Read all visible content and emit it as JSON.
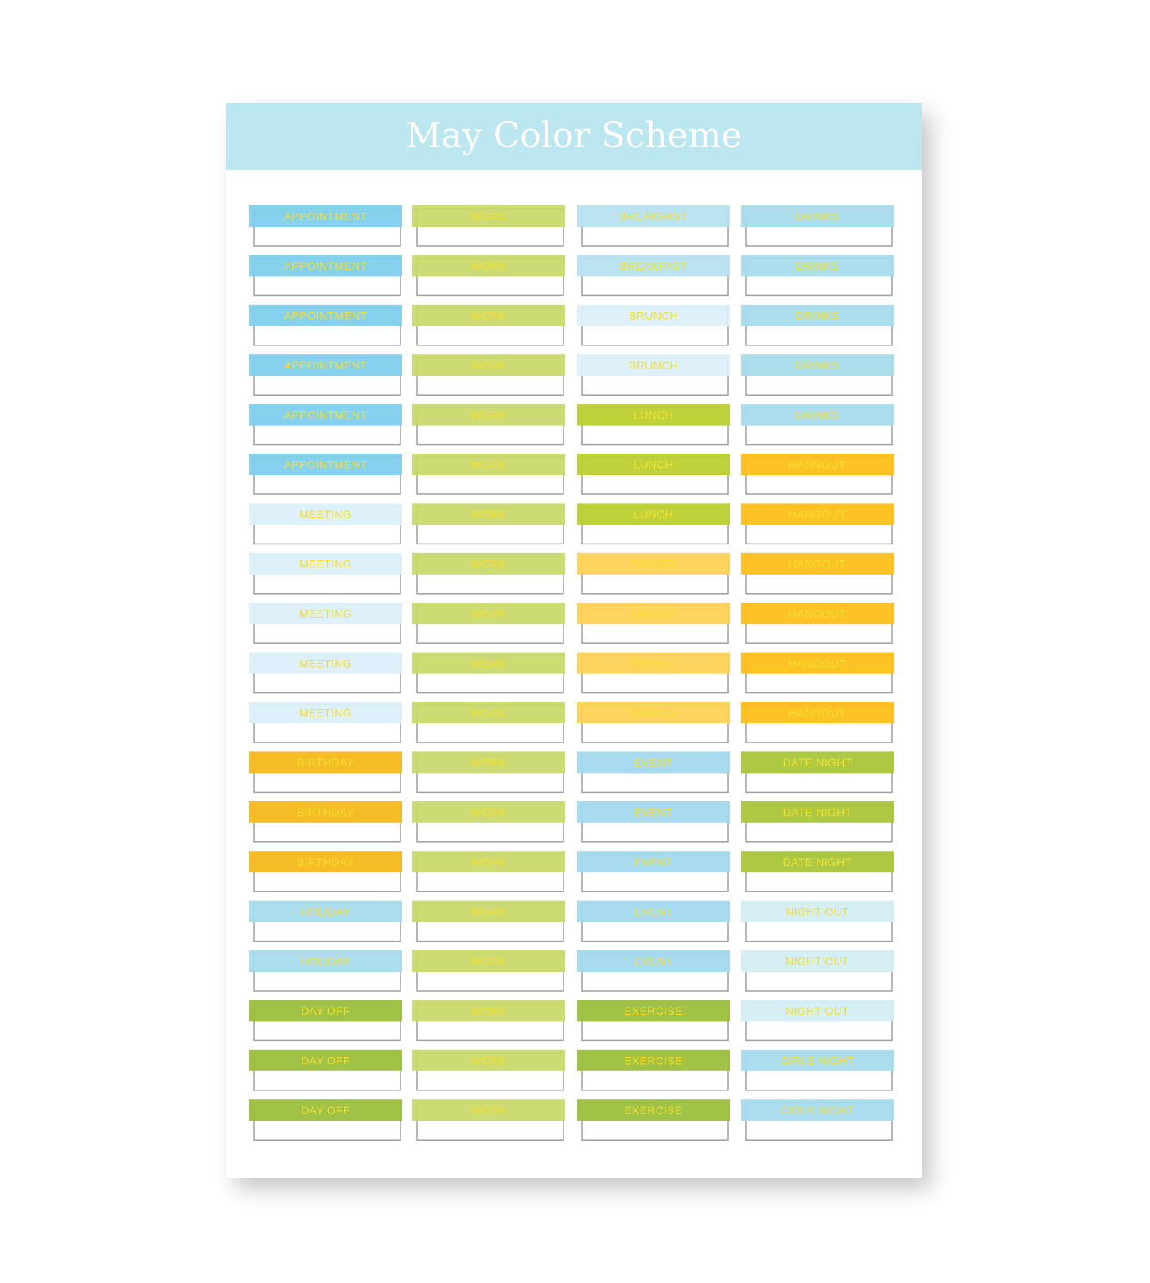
{
  "header": {
    "title": "May Color Scheme"
  },
  "columns": [
    {
      "stickers": [
        {
          "label": "APPOINTMENT",
          "color": "#7fcfec"
        },
        {
          "label": "APPOINTMENT",
          "color": "#7fcfec"
        },
        {
          "label": "APPOINTMENT",
          "color": "#7fcfec"
        },
        {
          "label": "APPOINTMENT",
          "color": "#7fcfec"
        },
        {
          "label": "APPOINTMENT",
          "color": "#7fcfec"
        },
        {
          "label": "APPOINTMENT",
          "color": "#7fcfec"
        },
        {
          "label": "MEETING",
          "color": "#dcf0fa"
        },
        {
          "label": "MEETING",
          "color": "#dcf0fa"
        },
        {
          "label": "MEETING",
          "color": "#dcf0fa"
        },
        {
          "label": "MEETING",
          "color": "#dcf0fa"
        },
        {
          "label": "MEETING",
          "color": "#dcf0fa"
        },
        {
          "label": "BIRTHDAY",
          "color": "#f6b91c"
        },
        {
          "label": "BIRTHDAY",
          "color": "#f6b91c"
        },
        {
          "label": "BIRTHDAY",
          "color": "#f6b91c"
        },
        {
          "label": "HOLIDAY",
          "color": "#a8dcec"
        },
        {
          "label": "HOLIDAY",
          "color": "#a8dcec"
        },
        {
          "label": "DAY OFF",
          "color": "#9bbf3c"
        },
        {
          "label": "DAY OFF",
          "color": "#9bbf3c"
        },
        {
          "label": "DAY OFF",
          "color": "#9bbf3c"
        }
      ]
    },
    {
      "stickers": [
        {
          "label": "WORK",
          "color": "#c9d96b"
        },
        {
          "label": "WORK",
          "color": "#c9d96b"
        },
        {
          "label": "WORK",
          "color": "#c9d96b"
        },
        {
          "label": "WORK",
          "color": "#c9d96b"
        },
        {
          "label": "WORK",
          "color": "#c9d96b"
        },
        {
          "label": "WORK",
          "color": "#c9d96b"
        },
        {
          "label": "WORK",
          "color": "#c9d96b"
        },
        {
          "label": "WORK",
          "color": "#c9d96b"
        },
        {
          "label": "WORK",
          "color": "#c9d96b"
        },
        {
          "label": "WORK",
          "color": "#c9d96b"
        },
        {
          "label": "WORK",
          "color": "#c9d96b"
        },
        {
          "label": "WORK",
          "color": "#c9d96b"
        },
        {
          "label": "WORK",
          "color": "#c9d96b"
        },
        {
          "label": "WORK",
          "color": "#c9d96b"
        },
        {
          "label": "WORK",
          "color": "#c9d96b"
        },
        {
          "label": "WORK",
          "color": "#c9d96b"
        },
        {
          "label": "WORK",
          "color": "#c9d96b"
        },
        {
          "label": "WORK",
          "color": "#c9d96b"
        },
        {
          "label": "WORK",
          "color": "#c9d96b"
        }
      ]
    },
    {
      "stickers": [
        {
          "label": "BREAKFAST",
          "color": "#b8e2f0"
        },
        {
          "label": "BREAKFAST",
          "color": "#b8e2f0"
        },
        {
          "label": "BRUNCH",
          "color": "#dcf0fa"
        },
        {
          "label": "BRUNCH",
          "color": "#dcf0fa"
        },
        {
          "label": "LUNCH",
          "color": "#bccf30"
        },
        {
          "label": "LUNCH",
          "color": "#bccf30"
        },
        {
          "label": "LUNCH",
          "color": "#bccf30"
        },
        {
          "label": "DINNER",
          "color": "#fdd254"
        },
        {
          "label": "DINNER",
          "color": "#fdd254"
        },
        {
          "label": "DINNER",
          "color": "#fdd254"
        },
        {
          "label": "DINNER",
          "color": "#fdd254"
        },
        {
          "label": "EVENT",
          "color": "#a3d9ee"
        },
        {
          "label": "EVENT",
          "color": "#a3d9ee"
        },
        {
          "label": "EVENT",
          "color": "#a3d9ee"
        },
        {
          "label": "EVENT",
          "color": "#a3d9ee"
        },
        {
          "label": "EVENT",
          "color": "#a3d9ee"
        },
        {
          "label": "EXERCISE",
          "color": "#9bbf3c"
        },
        {
          "label": "EXERCISE",
          "color": "#9bbf3c"
        },
        {
          "label": "EXERCISE",
          "color": "#9bbf3c"
        }
      ]
    },
    {
      "stickers": [
        {
          "label": "DRINKS",
          "color": "#a8dcec"
        },
        {
          "label": "DRINKS",
          "color": "#a8dcec"
        },
        {
          "label": "DRINKS",
          "color": "#a8dcec"
        },
        {
          "label": "DRINKS",
          "color": "#a8dcec"
        },
        {
          "label": "DRINKS",
          "color": "#a8dcec"
        },
        {
          "label": "HANGOUT",
          "color": "#fcbf1a"
        },
        {
          "label": "HANGOUT",
          "color": "#fcbf1a"
        },
        {
          "label": "HANGOUT",
          "color": "#fcbf1a"
        },
        {
          "label": "HANGOUT",
          "color": "#fcbf1a"
        },
        {
          "label": "HANGOUT",
          "color": "#fcbf1a"
        },
        {
          "label": "HANGOUT",
          "color": "#fcbf1a"
        },
        {
          "label": "DATE NIGHT",
          "color": "#a9c63a"
        },
        {
          "label": "DATE NIGHT",
          "color": "#a9c63a"
        },
        {
          "label": "DATE NIGHT",
          "color": "#a9c63a"
        },
        {
          "label": "NIGHT OUT",
          "color": "#d4eef4"
        },
        {
          "label": "NIGHT OUT",
          "color": "#d4eef4"
        },
        {
          "label": "NIGHT OUT",
          "color": "#d4eef4"
        },
        {
          "label": "GIRLS NIGHT",
          "color": "#a6dbee"
        },
        {
          "label": "GIRLS NIGHT",
          "color": "#a6dbee"
        }
      ]
    }
  ]
}
